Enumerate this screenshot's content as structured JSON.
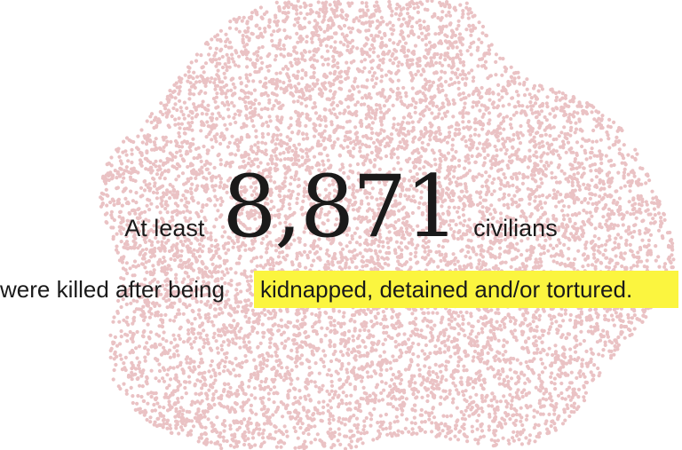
{
  "headline": {
    "prefix": "At least",
    "number": "8,871",
    "suffix": "civilians",
    "line2_plain": "were killed after being",
    "line2_highlight": "kidnapped, detained and/or tortured."
  },
  "colors": {
    "dot": "#eac2c4",
    "highlight": "#fbf53f",
    "text": "#1a1a1a"
  },
  "chart_data": {
    "type": "scatter",
    "encoding": "one dot per civilian",
    "count": 8871,
    "values": [
      8871
    ]
  }
}
